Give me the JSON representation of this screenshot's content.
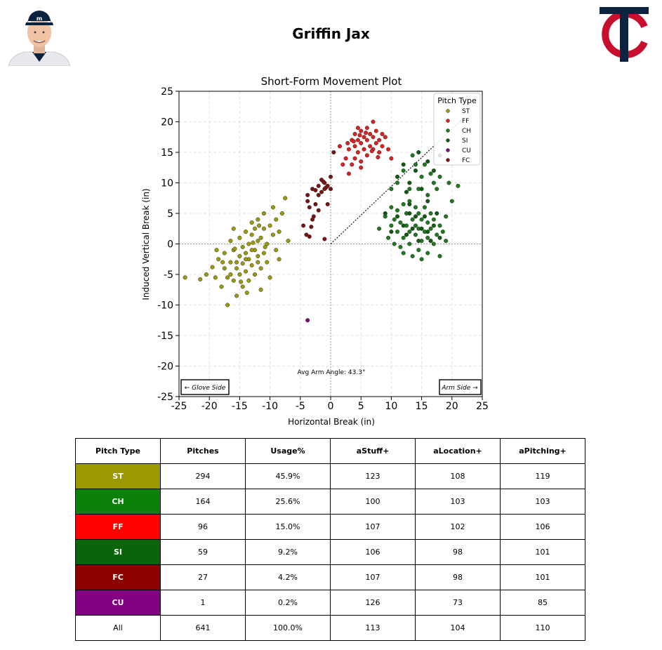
{
  "header": {
    "player_name": "Griffin Jax"
  },
  "chart_data": {
    "type": "scatter",
    "title": "Short-Form Movement Plot",
    "xlabel": "Horizontal Break (in)",
    "ylabel": "Induced Vertical Break (in)",
    "xlim": [
      -25,
      25
    ],
    "ylim": [
      -25,
      25
    ],
    "xticks": [
      "-25",
      "-20",
      "-15",
      "-10",
      "-5",
      "0",
      "5",
      "10",
      "15",
      "20",
      "25"
    ],
    "yticks": [
      "25",
      "20",
      "15",
      "10",
      "5",
      "0",
      "-5",
      "-10",
      "-15",
      "-20",
      "-25"
    ],
    "grid": true,
    "legend_title": "Pitch Type",
    "legend_position": "top-right",
    "annotation": "Avg Arm Angle: 43.3°",
    "arm_angle_deg": 43.3,
    "glove_side_label": "← Glove Side",
    "arm_side_label": "Arm Side →",
    "series": [
      {
        "name": "ST",
        "color": "#9a9a0a",
        "points": [
          [
            -24,
            -5.5
          ],
          [
            -21.5,
            -5.8
          ],
          [
            -20.5,
            -5
          ],
          [
            -19.5,
            -3.8
          ],
          [
            -19,
            -5.5
          ],
          [
            -18.5,
            -2.5
          ],
          [
            -18,
            -7
          ],
          [
            -17.5,
            -4
          ],
          [
            -17.5,
            -1.5
          ],
          [
            -17,
            -5.5
          ],
          [
            -17,
            -10
          ],
          [
            -16.5,
            -3
          ],
          [
            -16.5,
            0.5
          ],
          [
            -16,
            -6
          ],
          [
            -16,
            -1
          ],
          [
            -16,
            2.5
          ],
          [
            -15.5,
            -4
          ],
          [
            -15.5,
            -8.5
          ],
          [
            -15,
            -2
          ],
          [
            -15,
            1
          ],
          [
            -15,
            -5
          ],
          [
            -14.5,
            -3.2
          ],
          [
            -14.5,
            -0.5
          ],
          [
            -14.5,
            -7
          ],
          [
            -14,
            -1.5
          ],
          [
            -14,
            2
          ],
          [
            -14,
            -4.5
          ],
          [
            -13.5,
            0
          ],
          [
            -13.5,
            -2.5
          ],
          [
            -13.5,
            -6
          ],
          [
            -13,
            1.5
          ],
          [
            -13,
            -3.5
          ],
          [
            -13,
            3.5
          ],
          [
            -12.5,
            -1
          ],
          [
            -12.5,
            -5
          ],
          [
            -12.5,
            2.5
          ],
          [
            -12,
            0.5
          ],
          [
            -12,
            -2
          ],
          [
            -12,
            4
          ],
          [
            -11.5,
            -4
          ],
          [
            -11.5,
            1
          ],
          [
            -11.5,
            -7.5
          ],
          [
            -11,
            2.5
          ],
          [
            -11,
            -1.5
          ],
          [
            -11,
            5
          ],
          [
            -10.5,
            0
          ],
          [
            -10.5,
            -3
          ],
          [
            -10,
            3
          ],
          [
            -10,
            -5.5
          ],
          [
            -9.5,
            1.5
          ],
          [
            -9.5,
            6
          ],
          [
            -9,
            -1
          ],
          [
            -9,
            4
          ],
          [
            -8.5,
            2
          ],
          [
            -8.5,
            -2.5
          ],
          [
            -8,
            5
          ],
          [
            -7.5,
            7.5
          ],
          [
            -7,
            0.5
          ],
          [
            -15.5,
            -3
          ],
          [
            -16.5,
            -5
          ],
          [
            -14,
            -2.5
          ],
          [
            -13,
            -1
          ],
          [
            -12,
            -3
          ],
          [
            -14.8,
            -6.2
          ],
          [
            -15.8,
            -0.8
          ],
          [
            -12.8,
            0.2
          ],
          [
            -10.8,
            -0.5
          ],
          [
            -11.8,
            3
          ],
          [
            -13.8,
            -8
          ],
          [
            -17.8,
            -3
          ],
          [
            -18.8,
            -1
          ]
        ]
      },
      {
        "name": "FF",
        "color": "#dd1f1f",
        "points": [
          [
            1.5,
            16
          ],
          [
            2,
            13
          ],
          [
            2.5,
            14
          ],
          [
            3,
            15.5
          ],
          [
            3,
            11.5
          ],
          [
            3.5,
            17
          ],
          [
            3.5,
            13
          ],
          [
            4,
            18
          ],
          [
            4,
            16
          ],
          [
            4,
            14
          ],
          [
            4.5,
            19
          ],
          [
            4.5,
            17
          ],
          [
            4.5,
            15
          ],
          [
            5,
            18.5
          ],
          [
            5,
            16.5
          ],
          [
            5,
            13.5
          ],
          [
            5.5,
            17.5
          ],
          [
            5.5,
            15.5
          ],
          [
            6,
            19
          ],
          [
            6,
            17
          ],
          [
            6,
            14.5
          ],
          [
            6.5,
            18
          ],
          [
            6.5,
            16
          ],
          [
            7,
            20
          ],
          [
            7,
            17.5
          ],
          [
            7,
            15.5
          ],
          [
            7.5,
            18.5
          ],
          [
            7.5,
            16.5
          ],
          [
            8,
            17
          ],
          [
            8,
            15
          ],
          [
            8.5,
            18
          ],
          [
            8.5,
            16
          ],
          [
            9,
            17.5
          ],
          [
            9.5,
            15.5
          ],
          [
            10,
            14
          ],
          [
            5,
            12.5
          ],
          [
            3.8,
            16.8
          ],
          [
            5.8,
            18.2
          ],
          [
            6.8,
            15.2
          ],
          [
            4.8,
            17.8
          ],
          [
            7.8,
            14.2
          ],
          [
            2.8,
            16.5
          ]
        ]
      },
      {
        "name": "CH",
        "color": "#1d7a1d",
        "points": [
          [
            8,
            2.5
          ],
          [
            9,
            4.5
          ],
          [
            9.5,
            1
          ],
          [
            10,
            3
          ],
          [
            10,
            6
          ],
          [
            10.5,
            0
          ],
          [
            10.5,
            4
          ],
          [
            11,
            2
          ],
          [
            11,
            5.5
          ],
          [
            11.5,
            -0.5
          ],
          [
            11.5,
            3.5
          ],
          [
            12,
            1
          ],
          [
            12,
            6.5
          ],
          [
            12,
            -1.5
          ],
          [
            12.5,
            3
          ],
          [
            12.5,
            5
          ],
          [
            13,
            0
          ],
          [
            13,
            2
          ],
          [
            13,
            7
          ],
          [
            13.5,
            -2
          ],
          [
            13.5,
            4
          ],
          [
            14,
            1.5
          ],
          [
            14,
            3
          ],
          [
            14,
            6
          ],
          [
            14.5,
            -1
          ],
          [
            14.5,
            2.5
          ],
          [
            14.5,
            5
          ],
          [
            15,
            0.5
          ],
          [
            15,
            4
          ],
          [
            15,
            -2.5
          ],
          [
            15.5,
            2
          ],
          [
            15.5,
            6
          ],
          [
            16,
            1
          ],
          [
            16,
            3.5
          ],
          [
            16,
            -1.5
          ],
          [
            16.5,
            2.5
          ],
          [
            16.5,
            5
          ],
          [
            17,
            0
          ],
          [
            17,
            4
          ],
          [
            17.5,
            1.5
          ],
          [
            18,
            3
          ],
          [
            18,
            -2
          ],
          [
            18.5,
            2
          ],
          [
            19,
            4.5
          ],
          [
            19,
            0.5
          ],
          [
            17,
            10
          ],
          [
            15,
            11
          ],
          [
            14,
            13
          ],
          [
            13,
            9
          ],
          [
            12,
            12
          ],
          [
            16,
            8
          ],
          [
            18,
            11
          ],
          [
            20,
            7
          ],
          [
            21,
            9.5
          ],
          [
            19.5,
            10
          ],
          [
            11,
            10
          ],
          [
            10,
            9
          ],
          [
            15.5,
            13
          ],
          [
            14.5,
            9
          ],
          [
            16.5,
            11.5
          ],
          [
            17.5,
            9
          ],
          [
            13.5,
            14.5
          ]
        ]
      },
      {
        "name": "SI",
        "color": "#0f5a0f",
        "points": [
          [
            9,
            5
          ],
          [
            10,
            2
          ],
          [
            11,
            4.5
          ],
          [
            12,
            3
          ],
          [
            12.5,
            1.5
          ],
          [
            13,
            5
          ],
          [
            13.5,
            2.5
          ],
          [
            14,
            4.5
          ],
          [
            14.5,
            0.5
          ],
          [
            15,
            2.5
          ],
          [
            15.5,
            4.5
          ],
          [
            16,
            2
          ],
          [
            16.5,
            0.5
          ],
          [
            17,
            3
          ],
          [
            17.5,
            5
          ],
          [
            18,
            1
          ],
          [
            11,
            11
          ],
          [
            12,
            13
          ],
          [
            13,
            10
          ],
          [
            14,
            12
          ],
          [
            15,
            9
          ],
          [
            16,
            13.5
          ],
          [
            17,
            12
          ],
          [
            18,
            14.5
          ],
          [
            12.5,
            8.5
          ],
          [
            14.5,
            15
          ],
          [
            13,
            6.5
          ],
          [
            16,
            7
          ]
        ]
      },
      {
        "name": "CU",
        "color": "#7a0a7a",
        "points": [
          [
            -3.8,
            -12.5
          ]
        ]
      },
      {
        "name": "FC",
        "color": "#7a1212",
        "points": [
          [
            -4.5,
            3
          ],
          [
            -4,
            1.5
          ],
          [
            -3.8,
            8
          ],
          [
            -3.5,
            6
          ],
          [
            -3.5,
            1.2
          ],
          [
            -3,
            9
          ],
          [
            -3,
            4
          ],
          [
            -2.5,
            6.5
          ],
          [
            -2,
            9.5
          ],
          [
            -2,
            5.5
          ],
          [
            -1.5,
            10.5
          ],
          [
            -1.5,
            8.5
          ],
          [
            -1,
            10
          ],
          [
            -1,
            9
          ],
          [
            -0.5,
            9.5
          ],
          [
            -0.5,
            6.5
          ],
          [
            0,
            9
          ],
          [
            0,
            11
          ],
          [
            -2.5,
            8.8
          ],
          [
            -1.2,
            10.2
          ],
          [
            -0.8,
            9.2
          ],
          [
            -2.8,
            4.5
          ],
          [
            -3.2,
            2.8
          ],
          [
            0.5,
            15
          ],
          [
            -1,
            0.8
          ],
          [
            -3.8,
            7
          ],
          [
            -2,
            8
          ]
        ]
      }
    ]
  },
  "table": {
    "headers": [
      "Pitch Type",
      "Pitches",
      "Usage%",
      "aStuff+",
      "aLocation+",
      "aPitching+"
    ],
    "rows": [
      {
        "pitch": "ST",
        "color": "#9a9a00",
        "pitches": "294",
        "usage": "45.9%",
        "stuff": "123",
        "location": "108",
        "pitching": "119"
      },
      {
        "pitch": "CH",
        "color": "#0a820a",
        "pitches": "164",
        "usage": "25.6%",
        "stuff": "100",
        "location": "103",
        "pitching": "103"
      },
      {
        "pitch": "FF",
        "color": "#ff0000",
        "pitches": "96",
        "usage": "15.0%",
        "stuff": "107",
        "location": "102",
        "pitching": "106"
      },
      {
        "pitch": "SI",
        "color": "#0a640a",
        "pitches": "59",
        "usage": "9.2%",
        "stuff": "106",
        "location": "98",
        "pitching": "101"
      },
      {
        "pitch": "FC",
        "color": "#8c0000",
        "pitches": "27",
        "usage": "4.2%",
        "stuff": "107",
        "location": "98",
        "pitching": "101"
      },
      {
        "pitch": "CU",
        "color": "#820082",
        "pitches": "1",
        "usage": "0.2%",
        "stuff": "126",
        "location": "73",
        "pitching": "85"
      },
      {
        "pitch": "All",
        "color": "#ffffff",
        "pitches": "641",
        "usage": "100.0%",
        "stuff": "113",
        "location": "104",
        "pitching": "110"
      }
    ]
  },
  "colors": {
    "twins_navy": "#0c2340",
    "twins_red": "#c8102e"
  }
}
